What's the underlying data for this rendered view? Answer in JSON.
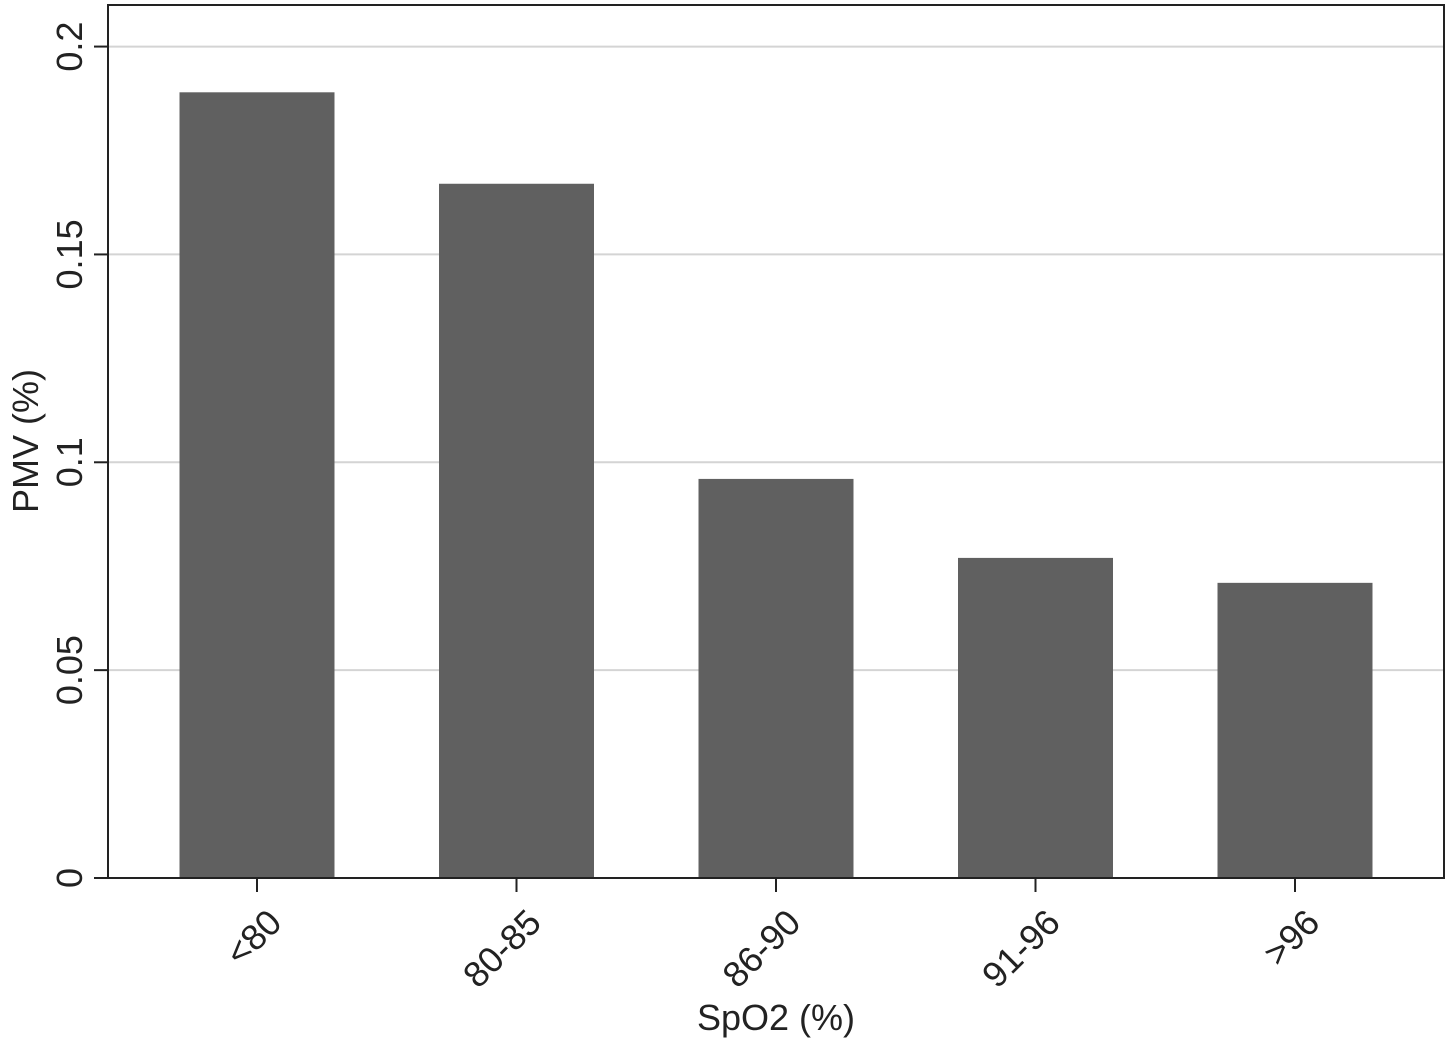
{
  "chart_data": {
    "type": "bar",
    "x_label": "SpO2 (%)",
    "y_label": "PMV (%)",
    "categories": [
      "<80",
      "80-85",
      "86-90",
      "91-96",
      ">96"
    ],
    "values": [
      0.189,
      0.167,
      0.096,
      0.077,
      0.071
    ],
    "color": "#606060",
    "ylim": [
      0,
      0.21
    ],
    "yticks": [
      0,
      0.05,
      0.1,
      0.15,
      0.2
    ],
    "grid": true
  }
}
